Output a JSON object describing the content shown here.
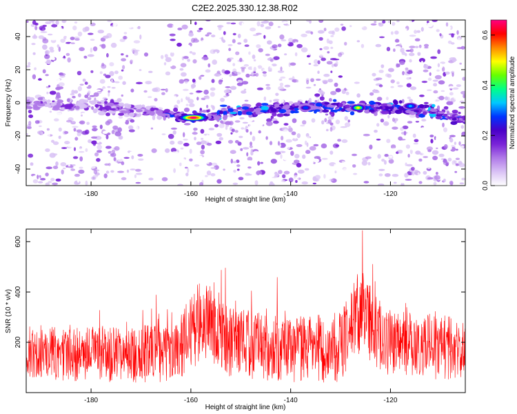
{
  "title": "C2E2.2025.330.12.38.R02",
  "colors": {
    "snr_line": "#ff0000",
    "frame": "#000000",
    "colormap": [
      "#ffffff",
      "#d9c2f5",
      "#b07ae8",
      "#7a24d8",
      "#4a00c8",
      "#0033ff",
      "#00c8ff",
      "#00ff88",
      "#66ff00",
      "#ffff00",
      "#ff8800",
      "#ff0000",
      "#ff0080"
    ]
  },
  "chart_data": [
    {
      "type": "heatmap",
      "name": "spectrogram",
      "xlabel": "Height of straight line (km)",
      "ylabel": "Frequency (Hz)",
      "xlim": [
        -193,
        -105
      ],
      "ylim": [
        -50,
        50
      ],
      "xticks": [
        -180,
        -160,
        -140,
        -120
      ],
      "yticks": [
        -40,
        -20,
        0,
        20,
        40
      ],
      "colorbar": {
        "label": "Normalized spectral amplitude",
        "range": [
          0.0,
          0.66
        ],
        "ticks": [
          0.0,
          0.2,
          0.4,
          0.6
        ],
        "tick_labels": [
          "0.0",
          "0.2",
          "0.4",
          "0.6"
        ]
      },
      "signal_band": [
        {
          "x": -193,
          "freq": 0
        },
        {
          "x": -175,
          "freq": -3
        },
        {
          "x": -165,
          "freq": -7
        },
        {
          "x": -160,
          "freq": -9
        },
        {
          "x": -150,
          "freq": -5
        },
        {
          "x": -140,
          "freq": -3
        },
        {
          "x": -130,
          "freq": -2
        },
        {
          "x": -120,
          "freq": -3
        },
        {
          "x": -112,
          "freq": -5
        },
        {
          "x": -105,
          "freq": -10
        }
      ],
      "peaks": [
        {
          "x": -159.5,
          "freq": -9,
          "amplitude": 0.66
        },
        {
          "x": -126.5,
          "freq": -3,
          "amplitude": 0.52
        },
        {
          "x": -116,
          "freq": -2,
          "amplitude": 0.35
        },
        {
          "x": -137,
          "freq": -3,
          "amplitude": 0.3
        }
      ]
    },
    {
      "type": "line",
      "name": "snr",
      "xlabel": "Height of straight line (km)",
      "ylabel": "SNR (10 * v/v)",
      "xlim": [
        -193,
        -105
      ],
      "ylim": [
        0,
        650
      ],
      "xticks": [
        -180,
        -160,
        -140,
        -120
      ],
      "yticks": [
        200,
        400,
        600
      ],
      "envelope": [
        {
          "x": -193,
          "base": 160,
          "amp": 110
        },
        {
          "x": -175,
          "base": 150,
          "amp": 110
        },
        {
          "x": -163,
          "base": 160,
          "amp": 120
        },
        {
          "x": -158,
          "base": 290,
          "amp": 170
        },
        {
          "x": -152,
          "base": 200,
          "amp": 140
        },
        {
          "x": -140,
          "base": 170,
          "amp": 130
        },
        {
          "x": -130,
          "base": 180,
          "amp": 140
        },
        {
          "x": -126,
          "base": 330,
          "amp": 170
        },
        {
          "x": -121,
          "base": 200,
          "amp": 130
        },
        {
          "x": -110,
          "base": 180,
          "amp": 130
        },
        {
          "x": -105,
          "base": 170,
          "amp": 120
        }
      ]
    }
  ]
}
